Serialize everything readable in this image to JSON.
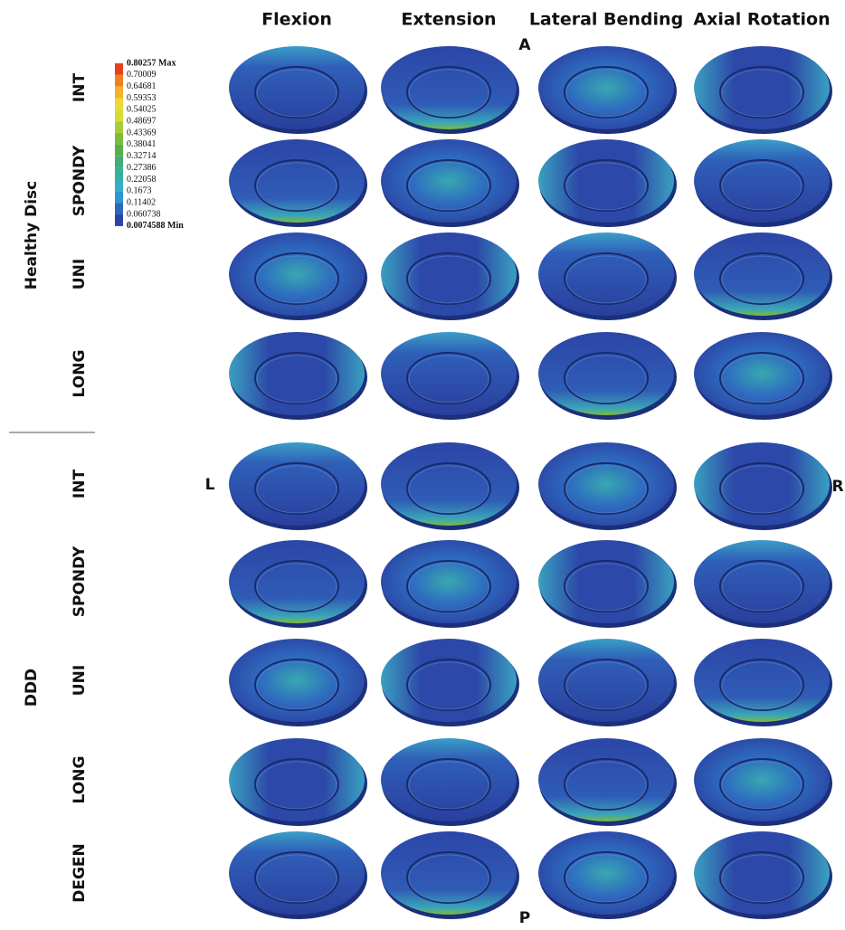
{
  "columns": [
    "Flexion",
    "Extension",
    "Lateral Bending",
    "Axial Rotation"
  ],
  "groups": [
    {
      "label": "Healthy Disc",
      "rows": [
        "INT",
        "SPONDY",
        "UNI",
        "LONG"
      ]
    },
    {
      "label": "DDD",
      "rows": [
        "INT",
        "SPONDY",
        "UNI",
        "LONG",
        "DEGEN"
      ]
    }
  ],
  "legend": {
    "labels": [
      "0.80257 Max",
      "0.70009",
      "0.64681",
      "0.59353",
      "0.54025",
      "0.48697",
      "0.43369",
      "0.38041",
      "0.32714",
      "0.27386",
      "0.22058",
      "0.1673",
      "0.11402",
      "0.060738",
      "0.0074588 Min"
    ],
    "colors": [
      "#e8401c",
      "#f0821e",
      "#f4b02a",
      "#f0d832",
      "#d6dc32",
      "#a8cc36",
      "#7cbc3a",
      "#56b04a",
      "#3fae78",
      "#38b0a0",
      "#34aec4",
      "#2e96d2",
      "#2e68be",
      "#2a44a6"
    ]
  },
  "orientation": {
    "anterior": "A",
    "posterior": "P",
    "left": "L",
    "right": "R"
  }
}
